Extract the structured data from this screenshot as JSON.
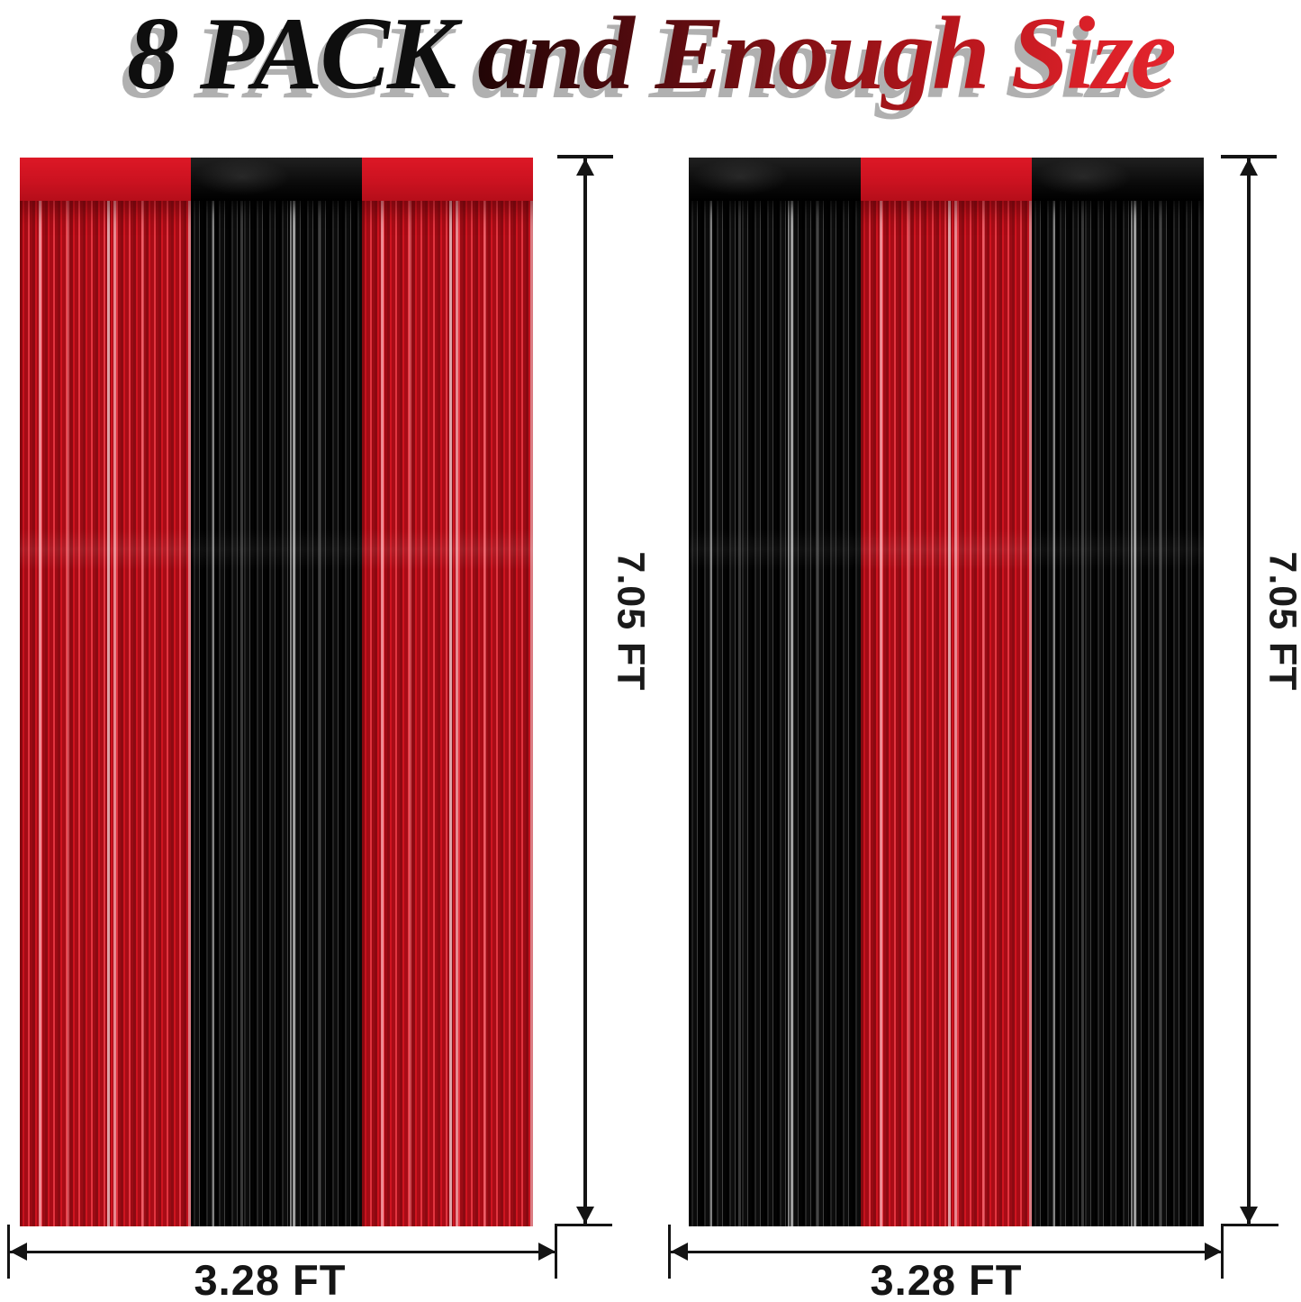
{
  "title": {
    "black_part": "8 PACK",
    "red_part": " and Enough Size"
  },
  "curtains": [
    {
      "id": "left",
      "panels": [
        "red",
        "black",
        "red"
      ],
      "height_label": "7.05 FT",
      "width_label": "3.28 FT"
    },
    {
      "id": "right",
      "panels": [
        "black",
        "red",
        "black"
      ],
      "height_label": "7.05 FT",
      "width_label": "3.28 FT"
    }
  ],
  "colors": {
    "background": "#ffffff",
    "title_black": "#0e0e0e",
    "title_red_gradient_start": "#1a0404",
    "title_red_gradient_end": "#e2242c",
    "title_shadow": "#b0b0b0",
    "foil_red": "#c01020",
    "foil_red_highlight": "#f5a9ae",
    "foil_black": "#0a0a0a",
    "foil_black_highlight": "#cccccc",
    "dimension_line": "#141414"
  }
}
